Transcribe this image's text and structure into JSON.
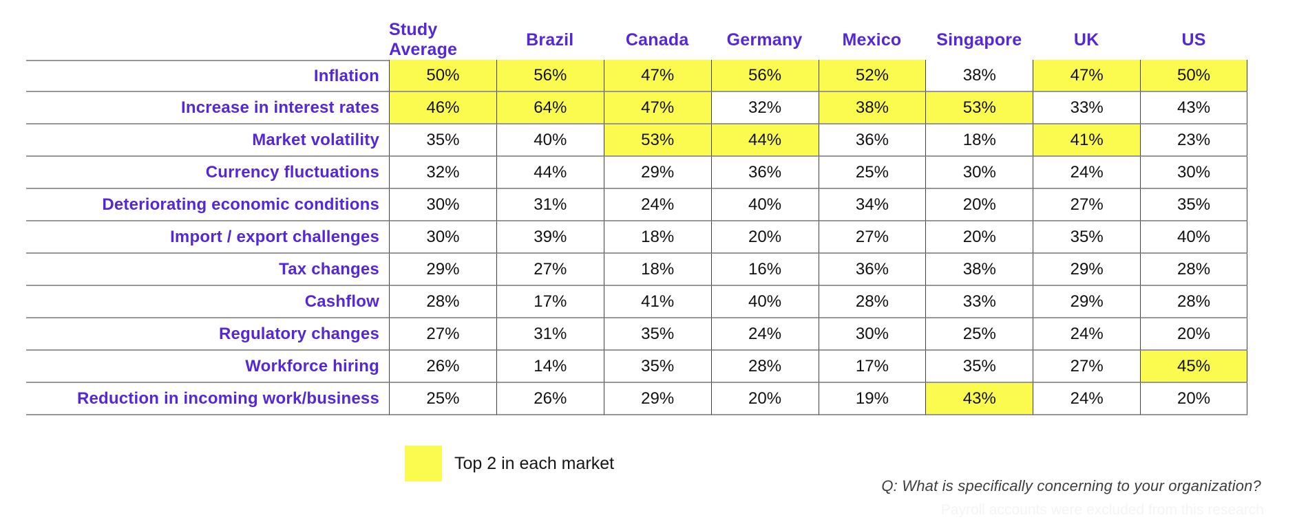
{
  "chart_data": {
    "type": "table",
    "columns": [
      "Study Average",
      "Brazil",
      "Canada",
      "Germany",
      "Mexico",
      "Singapore",
      "UK",
      "US"
    ],
    "rows": [
      {
        "label": "Inflation",
        "values": [
          "50%",
          "56%",
          "47%",
          "56%",
          "52%",
          "38%",
          "47%",
          "50%"
        ],
        "highlighted": [
          0,
          1,
          2,
          3,
          4,
          6,
          7
        ]
      },
      {
        "label": "Increase in interest rates",
        "values": [
          "46%",
          "64%",
          "47%",
          "32%",
          "38%",
          "53%",
          "33%",
          "43%"
        ],
        "highlighted": [
          0,
          1,
          2,
          4,
          5
        ]
      },
      {
        "label": "Market volatility",
        "values": [
          "35%",
          "40%",
          "53%",
          "44%",
          "36%",
          "18%",
          "41%",
          "23%"
        ],
        "highlighted": [
          2,
          3,
          6
        ]
      },
      {
        "label": "Currency fluctuations",
        "values": [
          "32%",
          "44%",
          "29%",
          "36%",
          "25%",
          "30%",
          "24%",
          "30%"
        ],
        "highlighted": []
      },
      {
        "label": "Deteriorating economic conditions",
        "values": [
          "30%",
          "31%",
          "24%",
          "40%",
          "34%",
          "20%",
          "27%",
          "35%"
        ],
        "highlighted": []
      },
      {
        "label": "Import / export challenges",
        "values": [
          "30%",
          "39%",
          "18%",
          "20%",
          "27%",
          "20%",
          "35%",
          "40%"
        ],
        "highlighted": []
      },
      {
        "label": "Tax changes",
        "values": [
          "29%",
          "27%",
          "18%",
          "16%",
          "36%",
          "38%",
          "29%",
          "28%"
        ],
        "highlighted": []
      },
      {
        "label": "Cashflow",
        "values": [
          "28%",
          "17%",
          "41%",
          "40%",
          "28%",
          "33%",
          "29%",
          "28%"
        ],
        "highlighted": []
      },
      {
        "label": "Regulatory changes",
        "values": [
          "27%",
          "31%",
          "35%",
          "24%",
          "30%",
          "25%",
          "24%",
          "20%"
        ],
        "highlighted": []
      },
      {
        "label": "Workforce hiring",
        "values": [
          "26%",
          "14%",
          "35%",
          "28%",
          "17%",
          "35%",
          "27%",
          "45%"
        ],
        "highlighted": [
          7
        ]
      },
      {
        "label": "Reduction in incoming work/business",
        "values": [
          "25%",
          "26%",
          "29%",
          "20%",
          "19%",
          "43%",
          "24%",
          "20%"
        ],
        "highlighted": [
          5
        ]
      }
    ],
    "legend_position": "bottom-left",
    "highlight_meaning": "Top 2 in each market"
  },
  "legend": {
    "label": "Top 2 in each market"
  },
  "footer": {
    "question": "Q: What is specifically concerning to your organization?",
    "footnote": "Payroll accounts were excluded from this research"
  },
  "colors": {
    "accent_purple": "#5527D8",
    "highlight_yellow": "#FBFB4F",
    "horizontal_line": "#979797",
    "vertical_line": "#3f3f3f"
  }
}
